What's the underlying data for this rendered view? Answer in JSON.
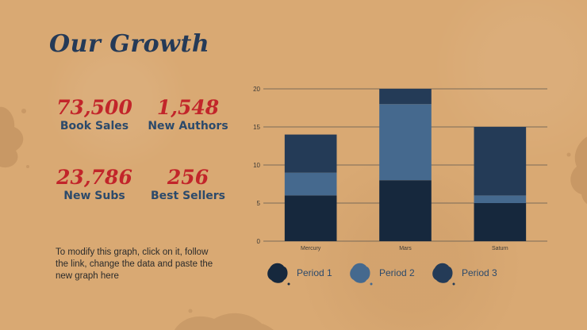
{
  "title": "Our Growth",
  "stats": [
    {
      "value": "73,500",
      "label": "Book Sales"
    },
    {
      "value": "1,548",
      "label": "New Authors"
    },
    {
      "value": "23,786",
      "label": "New Subs"
    },
    {
      "value": "256",
      "label": "Best Sellers"
    }
  ],
  "note": "To modify this graph, click on it, follow the link, change the data and paste the new graph here",
  "colors": {
    "background": "#d9a973",
    "title": "#253a57",
    "stat_value": "#c2252a",
    "stat_label": "#2c4a6b",
    "period1": "#16283d",
    "period2": "#45698e",
    "period3": "#243b57"
  },
  "chart_data": {
    "type": "bar",
    "stacked": true,
    "categories": [
      "Mercury",
      "Mars",
      "Saturn"
    ],
    "series": [
      {
        "name": "Period 1",
        "values": [
          6,
          8,
          5
        ],
        "color": "#16283d"
      },
      {
        "name": "Period 2",
        "values": [
          3,
          10,
          1
        ],
        "color": "#45698e"
      },
      {
        "name": "Period 3",
        "values": [
          5,
          2,
          9
        ],
        "color": "#243b57"
      }
    ],
    "yticks": [
      0,
      5,
      10,
      15,
      20
    ],
    "ylim": [
      0,
      20
    ],
    "grid": true,
    "legend_position": "bottom"
  }
}
